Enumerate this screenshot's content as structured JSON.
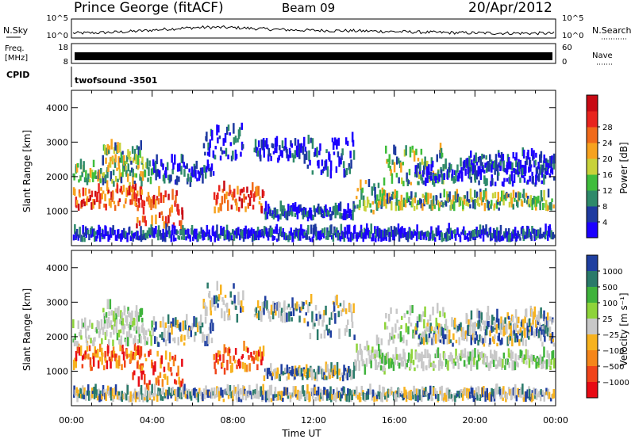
{
  "header": {
    "station": "Prince George (fitACF)",
    "beam": "Beam 09",
    "date": "20/Apr/2012"
  },
  "top_panels": {
    "nsky_label": "N.Sky",
    "nsearch_label": "N.Search",
    "nsky_ticks": [
      "10^5",
      "10^0"
    ],
    "nsearch_ticks": [
      "10^5",
      "10^0"
    ],
    "freq_label_1": "Freq.",
    "freq_label_2": "[MHz]",
    "freq_ticks": [
      "18",
      "8"
    ],
    "nave_label": "Nave",
    "nave_ticks": [
      "60",
      "0"
    ],
    "cpid_label": "CPID",
    "cpid_value": "twofsound  -3501"
  },
  "chart_data": [
    {
      "type": "heatmap",
      "name": "power",
      "ylabel": "Slant Range [km]",
      "yticks": [
        1000,
        2000,
        3000,
        4000
      ],
      "ylim": [
        0,
        4500
      ],
      "xlim": [
        0,
        24
      ],
      "colorbar_label": "Power [dB]",
      "colorbar_ticks": [
        "4",
        "8",
        "12",
        "16",
        "20",
        "24",
        "28"
      ],
      "colors": [
        "#1c00ff",
        "#1e3aa0",
        "#2e8a6a",
        "#3fbd3c",
        "#c8d23a",
        "#f7a21e",
        "#f06a1a",
        "#e8241e",
        "#c80a14"
      ]
    },
    {
      "type": "heatmap",
      "name": "velocity",
      "ylabel": "Slant Range [km]",
      "yticks": [
        1000,
        2000,
        3000,
        4000
      ],
      "ylim": [
        0,
        4500
      ],
      "xlim": [
        0,
        24
      ],
      "xlabel": "Time UT",
      "xtick_labels": [
        "00:00",
        "04:00",
        "08:00",
        "12:00",
        "16:00",
        "20:00",
        "00:00"
      ],
      "colorbar_label": "Velocity  [m s⁻¹]",
      "colorbar_ticks": [
        "1000",
        "500",
        "100",
        "25",
        "−25",
        "−100",
        "−500",
        "−1000"
      ],
      "colors": [
        "#1f3fa0",
        "#2a7a6a",
        "#3fb33c",
        "#8ed43a",
        "#c8c8c8",
        "#f7b21e",
        "#f5861a",
        "#f0441a",
        "#e80a14"
      ]
    }
  ]
}
